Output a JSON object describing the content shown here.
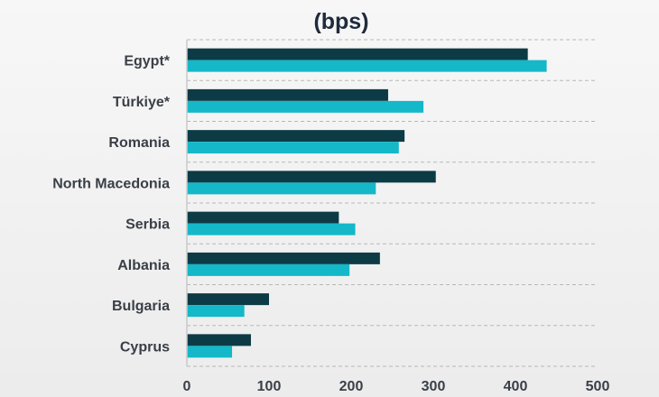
{
  "chart_data": {
    "type": "bar",
    "orientation": "horizontal",
    "title": "(bps)",
    "categories": [
      "Egypt*",
      "Türkiye*",
      "Romania",
      "North Macedonia",
      "Serbia",
      "Albania",
      "Bulgaria",
      "Cyprus"
    ],
    "series": [
      {
        "values": [
          415,
          245,
          265,
          303,
          185,
          235,
          100,
          78
        ]
      },
      {
        "values": [
          438,
          288,
          258,
          230,
          205,
          198,
          70,
          55
        ]
      }
    ],
    "colors": [
      "#0d3b45",
      "#14b8c8"
    ],
    "xlim": [
      0,
      500
    ],
    "xticks": [
      "0",
      "100",
      "200",
      "300",
      "400",
      "500"
    ],
    "grid": "horizontal-dashed",
    "legend": "none"
  }
}
